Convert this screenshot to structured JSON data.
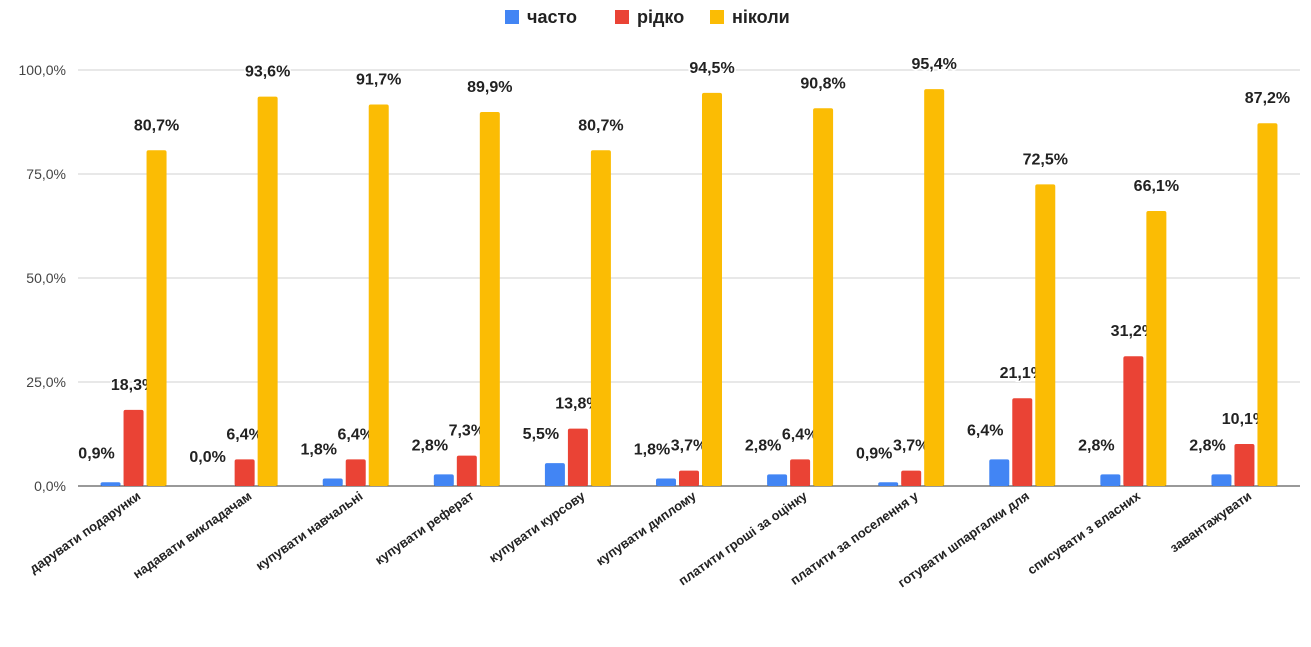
{
  "colors": {
    "series": [
      "#4285F4",
      "#EA4335",
      "#FBBC04"
    ]
  },
  "chart_data": {
    "type": "bar",
    "title": "",
    "xlabel": "",
    "ylabel": "",
    "legend_position": "top-center",
    "grid": true,
    "ylim": [
      0,
      100
    ],
    "yticks": [
      {
        "value": 0,
        "label": "0,0%"
      },
      {
        "value": 25,
        "label": "25,0%"
      },
      {
        "value": 50,
        "label": "50,0%"
      },
      {
        "value": 75,
        "label": "75,0%"
      },
      {
        "value": 100,
        "label": "100,0%"
      }
    ],
    "categories": [
      "дарувати подарунки",
      "надавати викладачам",
      "купувати навчальні",
      "купувати реферат",
      "купувати курсову",
      "купувати диплому",
      "платити гроші за оцінку",
      "платити за поселення у",
      "готувати шпаргалки для",
      "списувати з власних",
      "завантажувати"
    ],
    "series": [
      {
        "name": "часто",
        "values": [
          0.9,
          0.0,
          1.8,
          2.8,
          5.5,
          1.8,
          2.8,
          0.9,
          6.4,
          2.8,
          2.8
        ],
        "labels": [
          "0,9%",
          "0,0%",
          "1,8%",
          "2,8%",
          "5,5%",
          "1,8%",
          "2,8%",
          "0,9%",
          "6,4%",
          "2,8%",
          "2,8%"
        ]
      },
      {
        "name": "рідко",
        "values": [
          18.3,
          6.4,
          6.4,
          7.3,
          13.8,
          3.7,
          6.4,
          3.7,
          21.1,
          31.2,
          10.1
        ],
        "labels": [
          "18,3%",
          "6,4%",
          "6,4%",
          "7,3%",
          "13,8%",
          "3,7%",
          "6,4%",
          "3,7%",
          "21,1%",
          "31,2%",
          "10,1%"
        ]
      },
      {
        "name": "ніколи",
        "values": [
          80.7,
          93.6,
          91.7,
          89.9,
          80.7,
          94.5,
          90.8,
          95.4,
          72.5,
          66.1,
          87.2
        ],
        "labels": [
          "80,7%",
          "93,6%",
          "91,7%",
          "89,9%",
          "80,7%",
          "94,5%",
          "90,8%",
          "95,4%",
          "72,5%",
          "66,1%",
          "87,2%"
        ]
      }
    ]
  }
}
